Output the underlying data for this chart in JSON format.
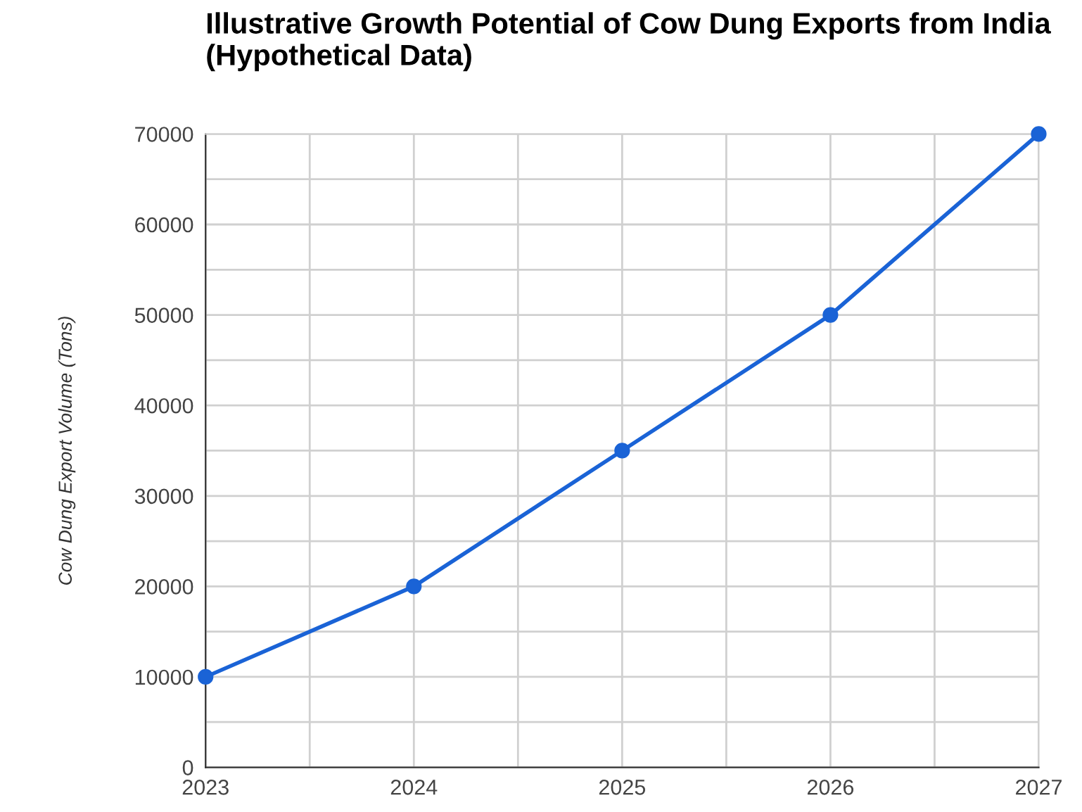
{
  "chart_data": {
    "type": "line",
    "title": "Illustrative Growth Potential of Cow Dung Exports from India (Hypothetical Data)",
    "ylabel": "Cow Dung Export Volume (Tons)",
    "x": [
      2023,
      2024,
      2025,
      2026,
      2027
    ],
    "series": [
      {
        "color": "#1a63d6",
        "values": [
          10000,
          20000,
          35000,
          50000,
          70000
        ]
      }
    ],
    "xlim": [
      2023,
      2027
    ],
    "xticks": [
      2023,
      {
        "value": 2023.5,
        "label": null
      },
      2024,
      {
        "value": 2024.5,
        "label": null
      },
      2025,
      {
        "value": 2025.5,
        "label": null
      },
      2026,
      {
        "value": 2026.5,
        "label": null
      },
      2027
    ],
    "ylim": [
      0,
      70000
    ],
    "yticks": [
      0,
      {
        "value": 5000,
        "label": null
      },
      10000,
      {
        "value": 15000,
        "label": null
      },
      20000,
      {
        "value": 25000,
        "label": null
      },
      30000,
      {
        "value": 35000,
        "label": null
      },
      40000,
      {
        "value": 45000,
        "label": null
      },
      50000,
      {
        "value": 55000,
        "label": null
      },
      60000,
      {
        "value": 65000,
        "label": null
      },
      70000
    ],
    "grid": true,
    "marker": "circle",
    "line_style": "solid",
    "legend": false
  }
}
